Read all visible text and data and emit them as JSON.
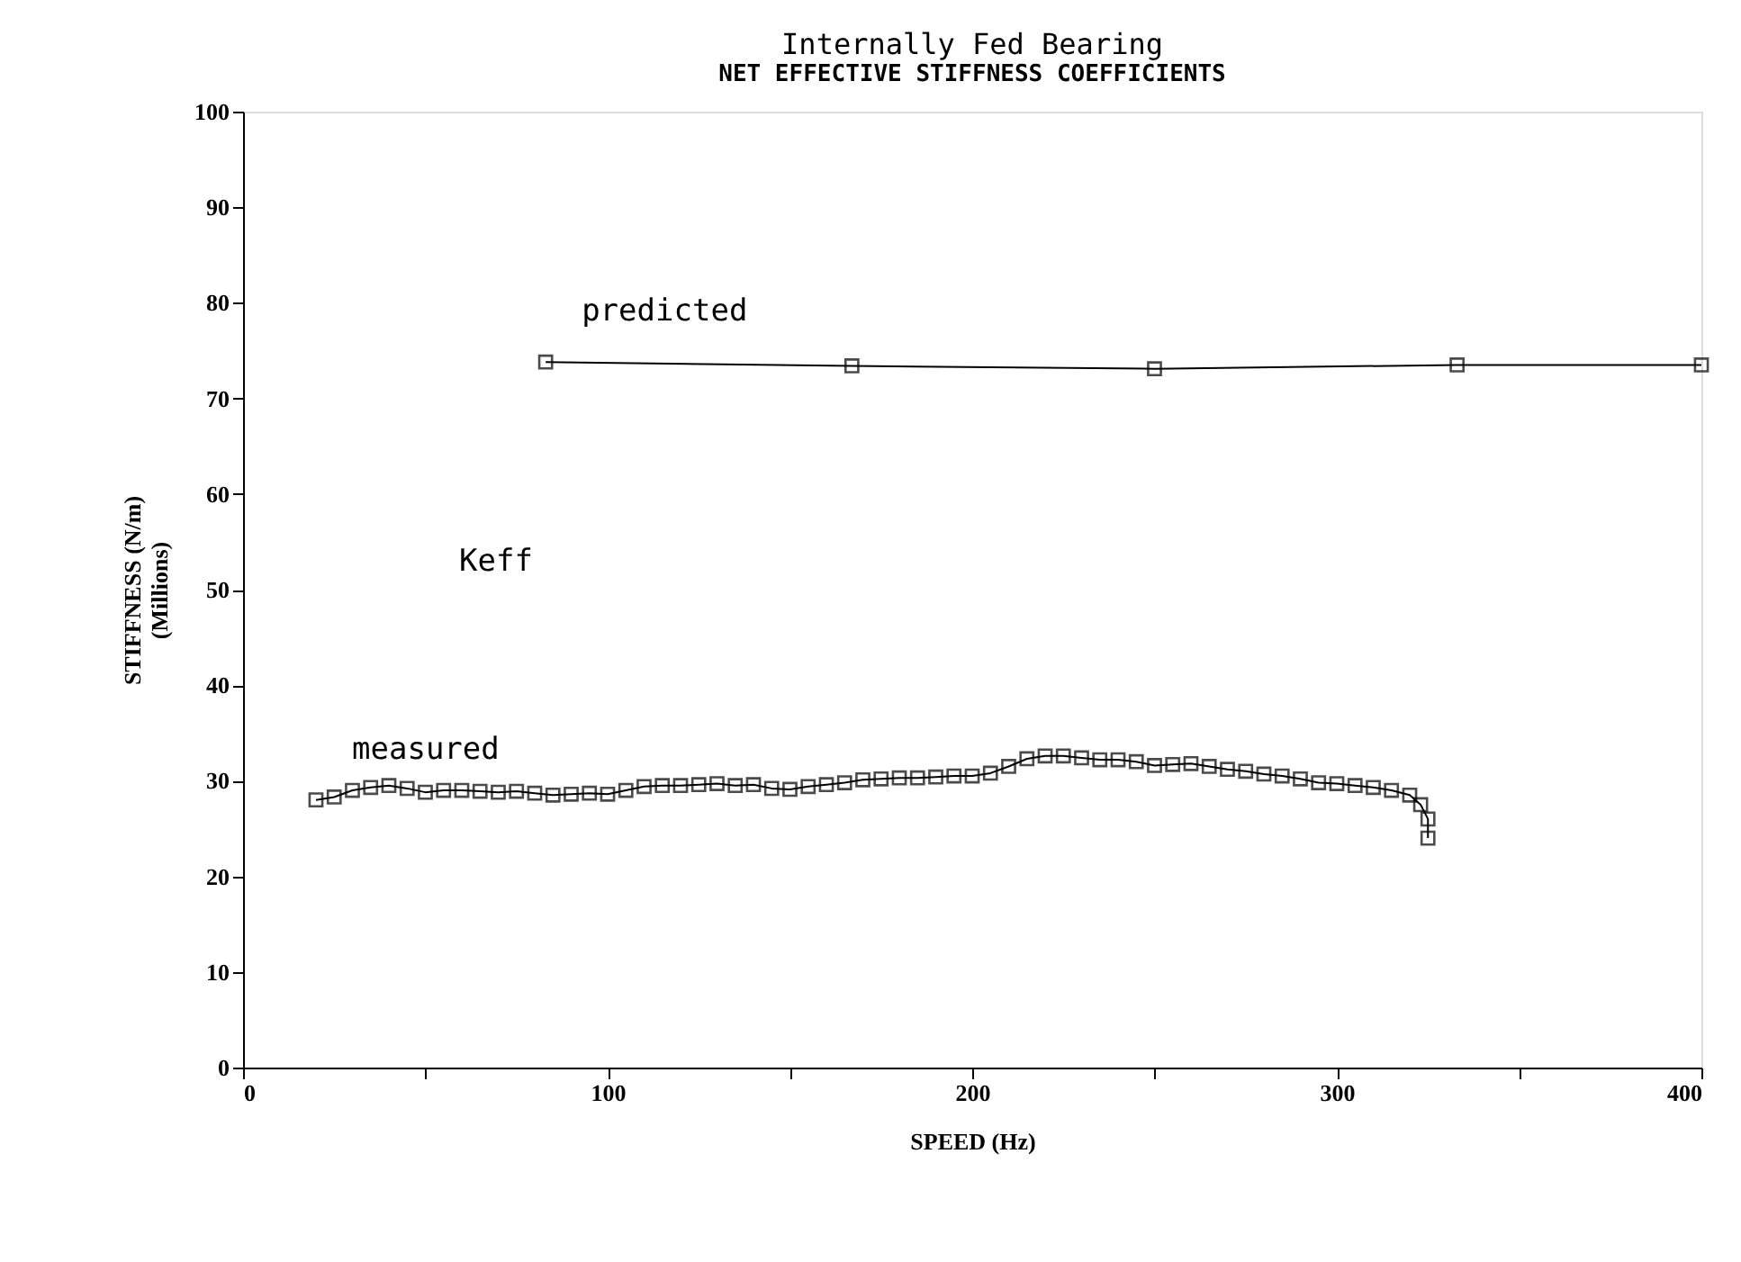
{
  "chart_data": {
    "type": "line",
    "title": "Internally Fed Bearing",
    "subtitle": "NET EFFECTIVE STIFFNESS COEFFICIENTS",
    "xlabel": "SPEED   (Hz)",
    "ylabel": "STIFFNESS   (N/m)\n(Millions)",
    "series": [
      {
        "name": "predicted",
        "color": "#000000",
        "x": [
          83,
          167,
          250,
          333,
          400
        ],
        "values": [
          73.8,
          73.4,
          73.1,
          73.5,
          73.5
        ]
      },
      {
        "name": "measured",
        "color": "#000000",
        "x": [
          20,
          25,
          30,
          35,
          40,
          45,
          50,
          55,
          60,
          65,
          70,
          75,
          80,
          85,
          90,
          95,
          100,
          105,
          110,
          115,
          120,
          125,
          130,
          135,
          140,
          145,
          150,
          155,
          160,
          165,
          170,
          175,
          180,
          185,
          190,
          195,
          200,
          205,
          210,
          215,
          220,
          225,
          230,
          235,
          240,
          245,
          250,
          255,
          260,
          265,
          270,
          275,
          280,
          285,
          290,
          295,
          300,
          305,
          310,
          315,
          320,
          323,
          325,
          325
        ],
        "values": [
          28,
          28.3,
          29,
          29.3,
          29.5,
          29.2,
          28.8,
          29,
          29,
          28.9,
          28.8,
          28.9,
          28.7,
          28.5,
          28.6,
          28.7,
          28.6,
          29,
          29.4,
          29.5,
          29.5,
          29.6,
          29.7,
          29.5,
          29.6,
          29.2,
          29.1,
          29.4,
          29.6,
          29.8,
          30.1,
          30.2,
          30.3,
          30.3,
          30.4,
          30.5,
          30.5,
          30.8,
          31.5,
          32.3,
          32.6,
          32.6,
          32.4,
          32.2,
          32.2,
          32,
          31.6,
          31.7,
          31.8,
          31.5,
          31.2,
          31,
          30.7,
          30.5,
          30.2,
          29.8,
          29.7,
          29.5,
          29.3,
          29,
          28.5,
          27.5,
          26,
          24
        ]
      }
    ],
    "annotations": [
      "Keff"
    ],
    "xlim": [
      0,
      400
    ],
    "xticks": [
      0,
      {
        "value": 50,
        "label": null
      },
      100,
      {
        "value": 150,
        "label": null
      },
      200,
      {
        "value": 250,
        "label": null
      },
      300,
      {
        "value": 350,
        "label": null
      },
      400
    ],
    "ylim": [
      0,
      100
    ],
    "yticks": [
      0,
      10,
      20,
      30,
      40,
      50,
      60,
      70,
      80,
      90,
      100
    ],
    "marker": "square",
    "line_style": "solid",
    "grid": false
  }
}
